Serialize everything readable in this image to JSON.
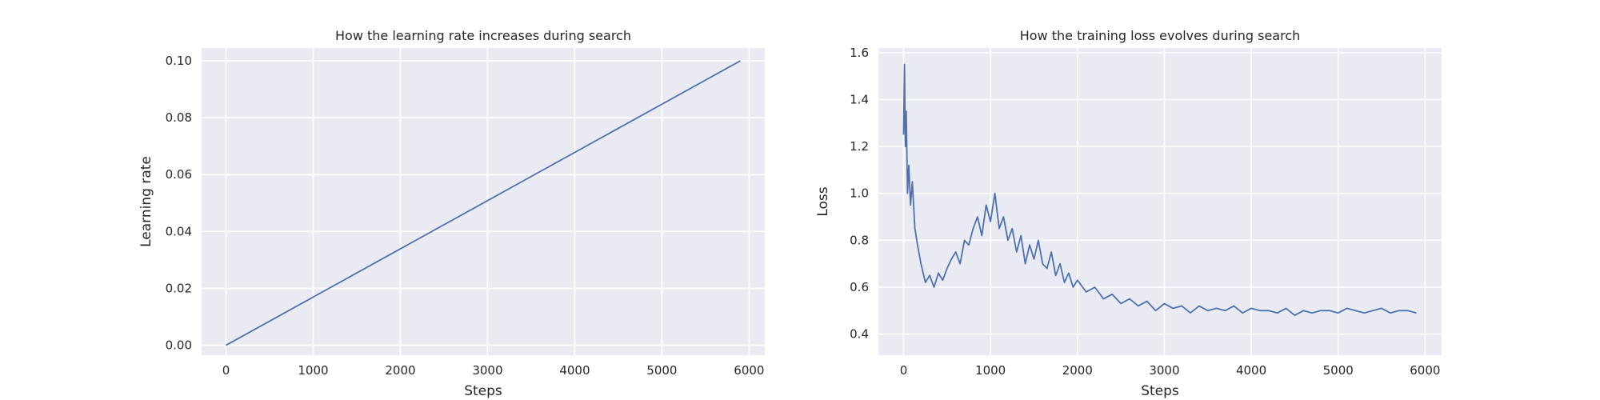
{
  "chart_data": [
    {
      "type": "line",
      "title": "How the learning rate increases during search",
      "xlabel": "Steps",
      "ylabel": "Learning rate",
      "xlim": [
        -280,
        6180
      ],
      "ylim": [
        -0.0035,
        0.1045
      ],
      "xticks": [
        0,
        1000,
        2000,
        3000,
        4000,
        5000,
        6000
      ],
      "xtick_labels": [
        "0",
        "1000",
        "2000",
        "3000",
        "4000",
        "5000",
        "6000"
      ],
      "yticks": [
        0.0,
        0.02,
        0.04,
        0.06,
        0.08,
        0.1
      ],
      "ytick_labels": [
        "0.00",
        "0.02",
        "0.04",
        "0.06",
        "0.08",
        "0.10"
      ],
      "grid": true,
      "series": [
        {
          "color": "#4c72b0",
          "x": [
            0,
            5900
          ],
          "y": [
            0.0,
            0.1
          ]
        }
      ]
    },
    {
      "type": "line",
      "title": "How the training loss evolves during search",
      "xlabel": "Steps",
      "ylabel": "Loss",
      "xlim": [
        -290,
        6190
      ],
      "ylim": [
        0.31,
        1.62
      ],
      "xticks": [
        0,
        1000,
        2000,
        3000,
        4000,
        5000,
        6000
      ],
      "xtick_labels": [
        "0",
        "1000",
        "2000",
        "3000",
        "4000",
        "5000",
        "6000"
      ],
      "yticks": [
        0.4,
        0.6,
        0.8,
        1.0,
        1.2,
        1.4,
        1.6
      ],
      "ytick_labels": [
        "0.4",
        "0.6",
        "0.8",
        "1.0",
        "1.2",
        "1.4",
        "1.6"
      ],
      "grid": true,
      "series": [
        {
          "color": "#4c72b0",
          "x": [
            0,
            10,
            20,
            30,
            45,
            60,
            80,
            100,
            130,
            160,
            200,
            250,
            300,
            350,
            400,
            450,
            500,
            550,
            600,
            650,
            700,
            750,
            800,
            850,
            900,
            950,
            1000,
            1050,
            1100,
            1150,
            1200,
            1250,
            1300,
            1350,
            1400,
            1450,
            1500,
            1550,
            1600,
            1650,
            1700,
            1750,
            1800,
            1850,
            1900,
            1950,
            2000,
            2100,
            2200,
            2300,
            2400,
            2500,
            2600,
            2700,
            2800,
            2900,
            3000,
            3100,
            3200,
            3300,
            3400,
            3500,
            3600,
            3700,
            3800,
            3900,
            4000,
            4100,
            4200,
            4300,
            4400,
            4500,
            4600,
            4700,
            4800,
            4900,
            5000,
            5100,
            5200,
            5300,
            5400,
            5500,
            5600,
            5700,
            5800,
            5900
          ],
          "y": [
            1.25,
            1.55,
            1.2,
            1.35,
            1.0,
            1.12,
            0.95,
            1.05,
            0.85,
            0.78,
            0.7,
            0.62,
            0.65,
            0.6,
            0.66,
            0.63,
            0.68,
            0.72,
            0.75,
            0.7,
            0.8,
            0.78,
            0.85,
            0.9,
            0.82,
            0.95,
            0.88,
            1.0,
            0.85,
            0.9,
            0.8,
            0.85,
            0.75,
            0.82,
            0.7,
            0.78,
            0.72,
            0.8,
            0.7,
            0.68,
            0.75,
            0.65,
            0.7,
            0.62,
            0.66,
            0.6,
            0.63,
            0.58,
            0.6,
            0.55,
            0.57,
            0.53,
            0.55,
            0.52,
            0.54,
            0.5,
            0.53,
            0.51,
            0.52,
            0.49,
            0.52,
            0.5,
            0.51,
            0.5,
            0.52,
            0.49,
            0.51,
            0.5,
            0.5,
            0.49,
            0.51,
            0.48,
            0.5,
            0.49,
            0.5,
            0.5,
            0.49,
            0.51,
            0.5,
            0.49,
            0.5,
            0.51,
            0.49,
            0.5,
            0.5,
            0.49
          ]
        }
      ]
    }
  ]
}
